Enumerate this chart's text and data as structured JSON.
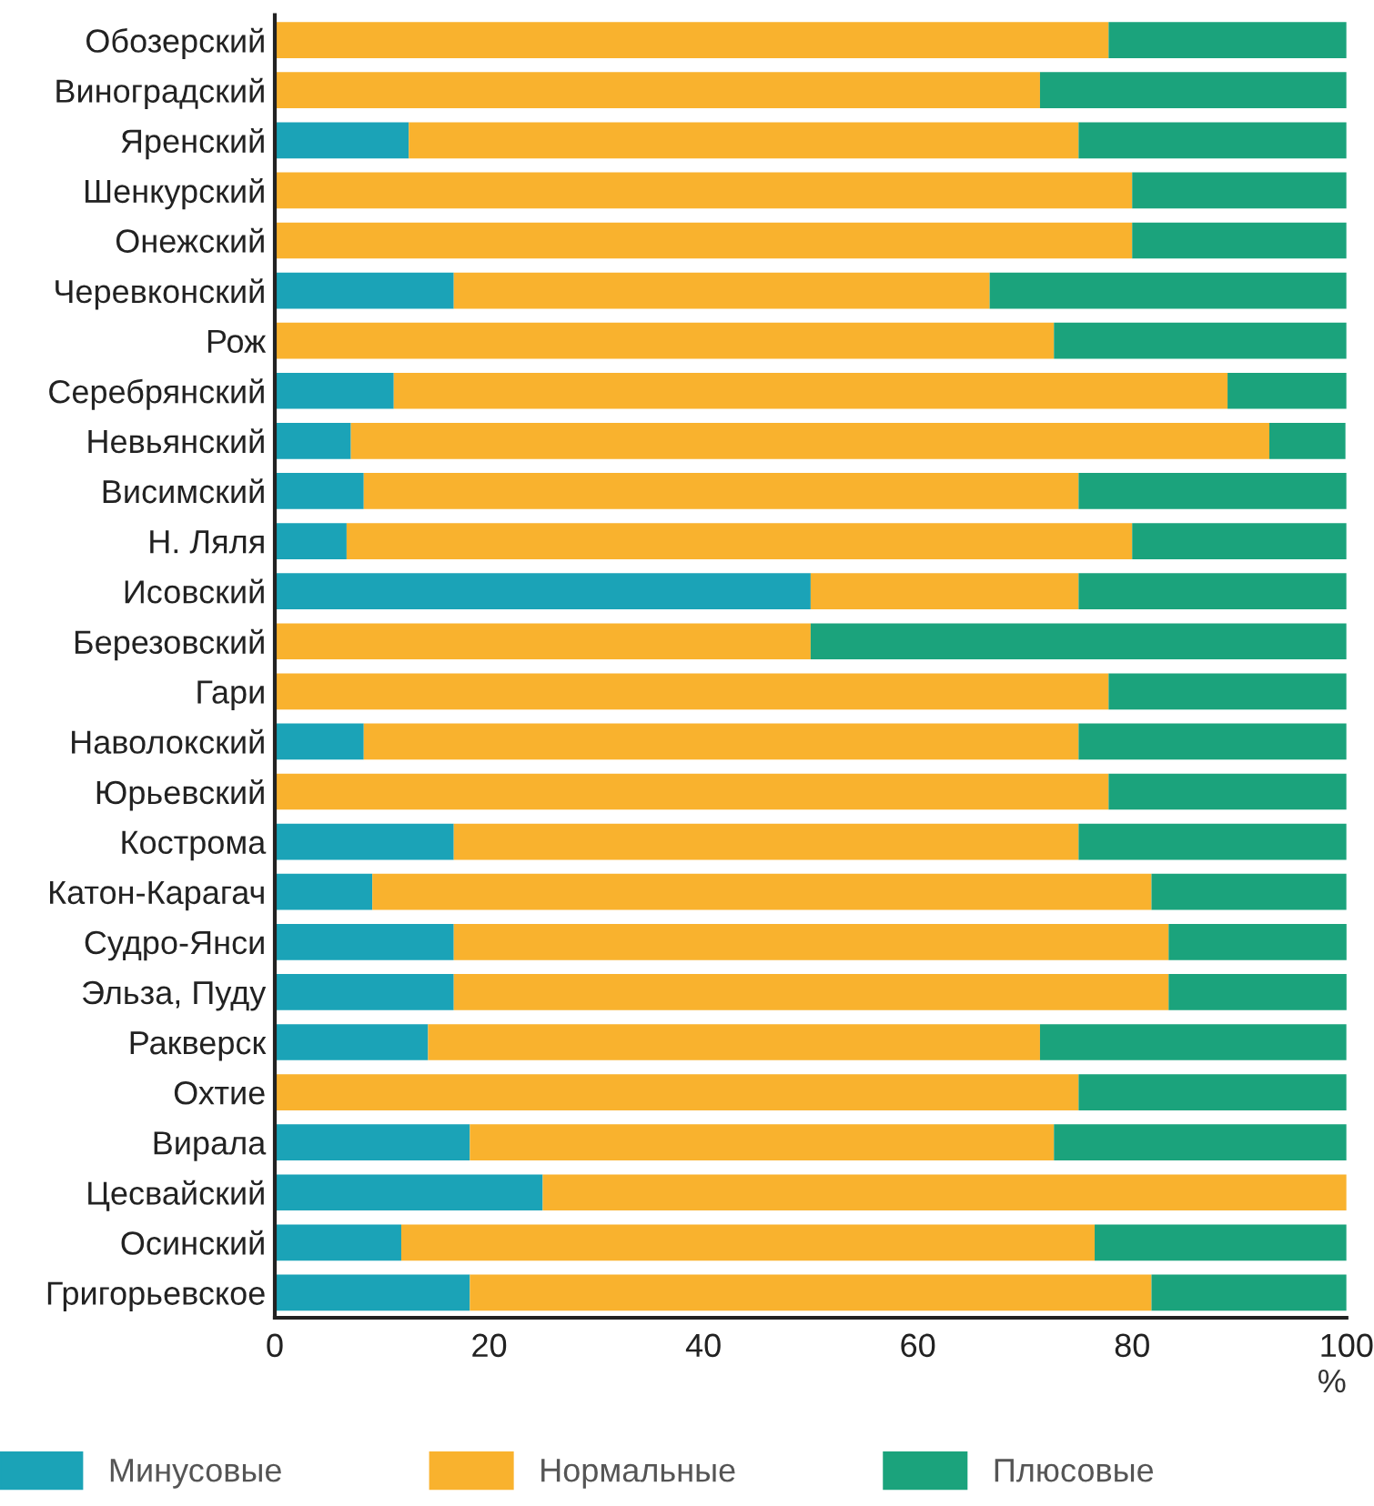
{
  "chart_data": {
    "type": "bar",
    "orientation": "horizontal",
    "stacked": true,
    "xlabel": "%",
    "categories": [
      "Обозерский",
      "Виноградский",
      "Яренский",
      "Шенкурский",
      "Онежский",
      "Черевконский",
      "Рож",
      "Серебрянский",
      "Невьянский",
      "Висимский",
      "Н. Ляля",
      "Исовский",
      "Березовский",
      "Гари",
      "Наволокский",
      "Юрьевский",
      "Кострома",
      "Катон-Карагач",
      "Судро-Янси",
      "Эльза, Пуду",
      "Ракверск",
      "Охтие",
      "Вирала",
      "Цесвайский",
      "Осинский",
      "Григорьевское"
    ],
    "series": [
      {
        "name": "Минусовые",
        "color": "#1ba3b7",
        "values": [
          0,
          0,
          12.5,
          0,
          0,
          16.7,
          0,
          11.1,
          7.1,
          8.3,
          6.7,
          50,
          0,
          0,
          8.3,
          0,
          16.7,
          9.1,
          16.7,
          16.7,
          14.3,
          0,
          18.2,
          25,
          11.8,
          18.2
        ]
      },
      {
        "name": "Нормальные",
        "color": "#f9b22e",
        "values": [
          77.8,
          71.4,
          62.5,
          80,
          80,
          50,
          72.7,
          77.8,
          85.7,
          66.7,
          73.3,
          25,
          50,
          77.8,
          66.7,
          77.8,
          58.3,
          72.7,
          66.7,
          66.7,
          57.1,
          75,
          54.5,
          75,
          64.7,
          63.6
        ]
      },
      {
        "name": "Плюсовые",
        "color": "#1ba37c",
        "values": [
          22.2,
          28.6,
          25,
          20,
          20,
          33.3,
          27.3,
          11.1,
          7.1,
          25,
          20,
          25,
          50,
          22.2,
          25,
          22.2,
          25,
          18.2,
          16.7,
          16.7,
          28.6,
          25,
          27.3,
          0,
          23.5,
          18.2
        ]
      }
    ],
    "xlim": [
      0,
      100
    ],
    "xticks": [
      0,
      20,
      40,
      60,
      80,
      100
    ],
    "grid": false,
    "legend": "bottom"
  }
}
